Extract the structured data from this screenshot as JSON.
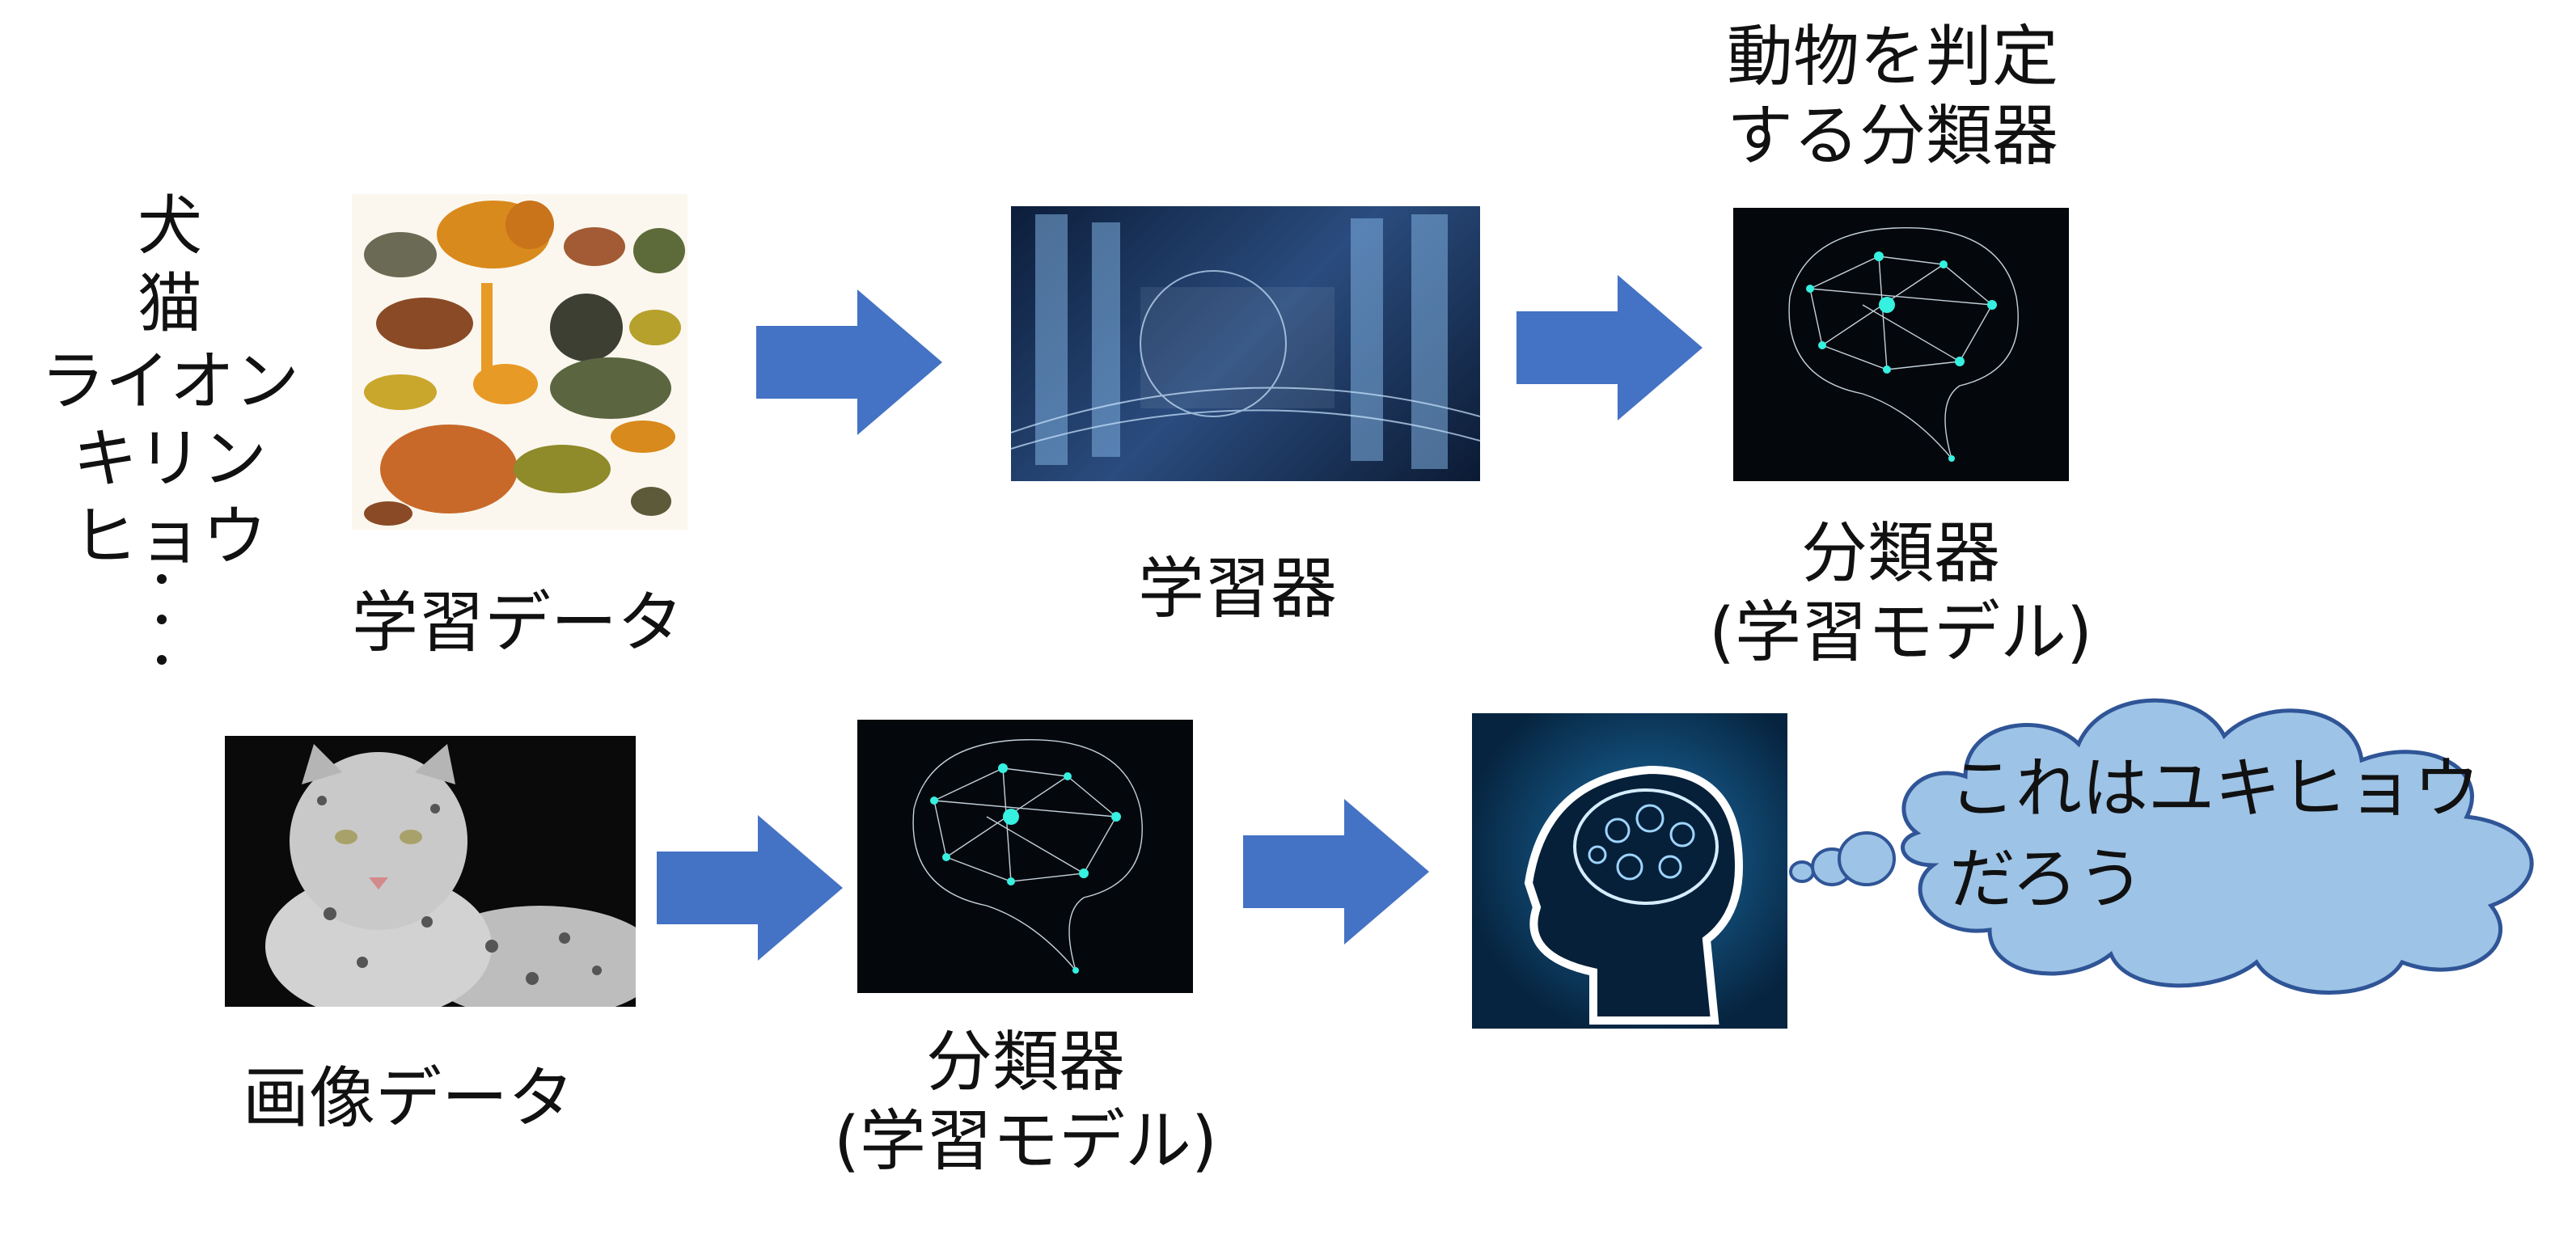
{
  "title_classifier": "動物を判定\nする分類器",
  "animals": [
    "犬",
    "猫",
    "ライオン",
    "キリン",
    "ヒョウ"
  ],
  "labels": {
    "training_data": "学習データ",
    "learner": "学習器",
    "classifier_top": "分類器\n(学習モデル)",
    "image_data": "画像データ",
    "classifier_bottom": "分類器\n(学習モデル)"
  },
  "thought": "これはユキヒョウ\nだろう",
  "colors": {
    "arrow": "#4472c4",
    "cloud_fill": "#9dc3e6",
    "cloud_stroke": "#2f5597"
  }
}
